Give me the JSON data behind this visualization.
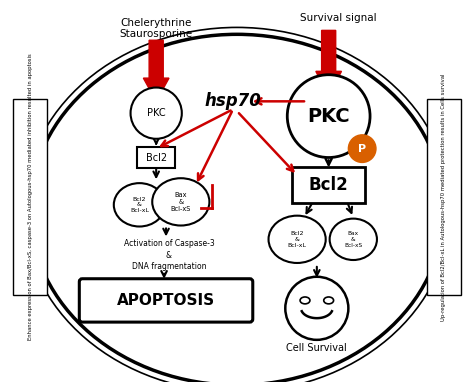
{
  "bg_color": "#ffffff",
  "title_left": "Chelerythrine\nStaurosporine",
  "title_right": "Survival signal",
  "hsp70_label": "hsp70",
  "apoptosis_label": "APOPTOSIS",
  "cell_survival_label": "Cell Survival",
  "left_side_text": "Enhance expression of Bax/Bcl-xS, caspase-3 on Autologous-hsp70 mediated inhibition resulted in apoptosis",
  "right_side_text": "Up-regulation of Bcl2/Bcl-xL in Autologous-hsp70 mediated protection results in Cells survival",
  "red_color": "#cc0000",
  "black_color": "#000000",
  "orange_color": "#d96000"
}
